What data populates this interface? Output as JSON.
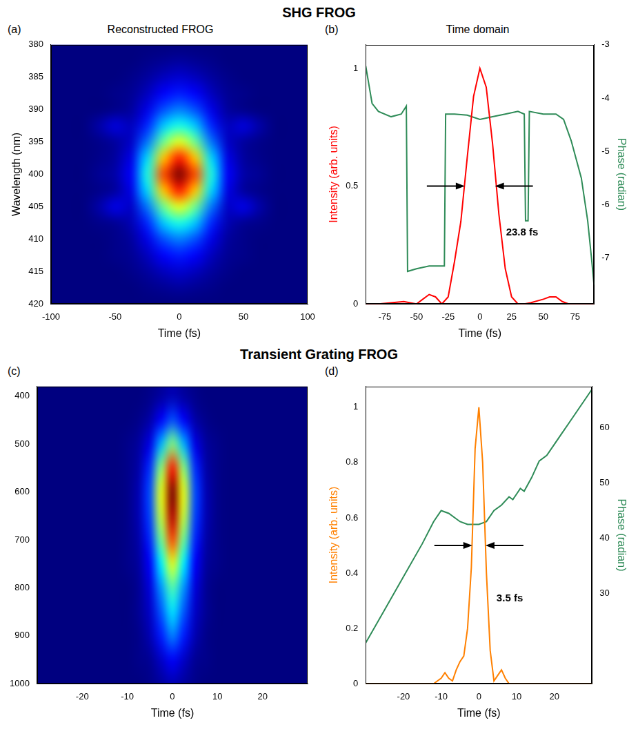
{
  "chart_data": [
    {
      "section_title": "SHG FROG",
      "panel": "(a)",
      "title": "Reconstructed FROG",
      "type": "heatmap",
      "color": "jet",
      "x_label": "Time (fs)",
      "y_label": "Wavelength (nm)",
      "grid": false,
      "x": [
        -100,
        -87.5,
        -75,
        -62.5,
        -50,
        -37.5,
        -25,
        -12.5,
        0,
        12.5,
        25,
        37.5,
        50,
        62.5,
        75,
        87.5,
        100
      ],
      "y": [
        380,
        382.5,
        385,
        387.5,
        390,
        392.5,
        395,
        397.5,
        400,
        402.5,
        405,
        407.5,
        410,
        412.5,
        415,
        417.5,
        420
      ],
      "z": [
        [
          0,
          0,
          0,
          0,
          0,
          0,
          0,
          0,
          0,
          0,
          0,
          0,
          0,
          0,
          0,
          0,
          0
        ],
        [
          0,
          0,
          0,
          0,
          0,
          0,
          0.01,
          0.02,
          0.03,
          0.02,
          0.01,
          0,
          0,
          0,
          0,
          0,
          0
        ],
        [
          0,
          0,
          0,
          0,
          0,
          0.01,
          0.03,
          0.06,
          0.08,
          0.06,
          0.03,
          0.01,
          0,
          0,
          0,
          0,
          0
        ],
        [
          0,
          0,
          0,
          0,
          0.01,
          0.02,
          0.06,
          0.12,
          0.15,
          0.12,
          0.06,
          0.02,
          0.01,
          0,
          0,
          0,
          0
        ],
        [
          0,
          0,
          0,
          0,
          0.01,
          0.03,
          0.1,
          0.2,
          0.25,
          0.2,
          0.1,
          0.03,
          0.01,
          0,
          0,
          0,
          0
        ],
        [
          0,
          0,
          0,
          0.04,
          0.09,
          0.06,
          0.16,
          0.32,
          0.4,
          0.32,
          0.16,
          0.06,
          0.09,
          0.04,
          0,
          0,
          0
        ],
        [
          0,
          0,
          0,
          0.01,
          0.03,
          0.07,
          0.24,
          0.48,
          0.6,
          0.48,
          0.24,
          0.07,
          0.03,
          0.01,
          0,
          0,
          0
        ],
        [
          0,
          0,
          0,
          0.01,
          0.03,
          0.1,
          0.34,
          0.68,
          0.85,
          0.68,
          0.34,
          0.1,
          0.03,
          0.01,
          0,
          0,
          0
        ],
        [
          0,
          0,
          0,
          0.02,
          0.04,
          0.12,
          0.4,
          0.8,
          1,
          0.8,
          0.4,
          0.12,
          0.04,
          0.02,
          0,
          0,
          0
        ],
        [
          0,
          0,
          0,
          0.01,
          0.03,
          0.1,
          0.34,
          0.68,
          0.85,
          0.68,
          0.34,
          0.1,
          0.03,
          0.01,
          0,
          0,
          0
        ],
        [
          0,
          0,
          0,
          0.04,
          0.1,
          0.07,
          0.24,
          0.48,
          0.6,
          0.48,
          0.24,
          0.07,
          0.1,
          0.04,
          0,
          0,
          0
        ],
        [
          0,
          0,
          0,
          0.01,
          0.02,
          0.05,
          0.16,
          0.32,
          0.4,
          0.32,
          0.16,
          0.05,
          0.02,
          0.01,
          0,
          0,
          0
        ],
        [
          0,
          0,
          0,
          0,
          0.01,
          0.03,
          0.1,
          0.2,
          0.25,
          0.2,
          0.1,
          0.03,
          0.01,
          0,
          0,
          0,
          0
        ],
        [
          0,
          0,
          0,
          0,
          0.01,
          0.02,
          0.06,
          0.12,
          0.15,
          0.12,
          0.06,
          0.02,
          0.01,
          0,
          0,
          0,
          0
        ],
        [
          0,
          0,
          0,
          0,
          0,
          0.01,
          0.03,
          0.06,
          0.08,
          0.06,
          0.03,
          0.01,
          0,
          0,
          0,
          0,
          0
        ],
        [
          0,
          0,
          0,
          0,
          0,
          0,
          0.01,
          0.02,
          0.03,
          0.02,
          0.01,
          0,
          0,
          0,
          0,
          0,
          0
        ],
        [
          0,
          0,
          0,
          0,
          0,
          0,
          0,
          0,
          0,
          0,
          0,
          0,
          0,
          0,
          0,
          0,
          0
        ]
      ],
      "zlim": [
        0,
        1
      ],
      "xlim": [
        -100,
        100
      ],
      "xticks": [
        -100,
        -50,
        0,
        50,
        100
      ],
      "ylim": [
        420,
        380
      ],
      "yticks": [
        380,
        385,
        390,
        395,
        400,
        405,
        410,
        415,
        420
      ]
    },
    {
      "panel": "(b)",
      "title": "Time domain",
      "type": "line",
      "grid": false,
      "x_label": "Time (fs)",
      "y_label": "Intensity (arb. units)",
      "y2_label": "Phase (radian)",
      "xlim": [
        -90,
        90
      ],
      "xticks": [
        -75,
        -50,
        -25,
        0,
        25,
        50,
        75
      ],
      "ylim": [
        0,
        1.1
      ],
      "yticks": [
        0,
        0.5,
        1
      ],
      "y2lim": [
        -7.86,
        -3
      ],
      "y2ticks": [
        -7,
        -6,
        -5,
        -4,
        -3
      ],
      "series": [
        {
          "color": "#ff0000",
          "x": [
            -90,
            -80,
            -70,
            -60,
            -50,
            -45,
            -40,
            -35,
            -30,
            -25,
            -20,
            -15,
            -10,
            -5,
            0,
            5,
            10,
            15,
            20,
            25,
            30,
            35,
            40,
            50,
            55,
            60,
            65,
            70,
            80,
            90
          ],
          "values": [
            0,
            0,
            0.005,
            0.01,
            0,
            0.02,
            0.04,
            0.03,
            0,
            0.03,
            0.18,
            0.35,
            0.62,
            0.88,
            1,
            0.92,
            0.68,
            0.38,
            0.15,
            0.03,
            0,
            0,
            0.005,
            0.02,
            0.03,
            0.03,
            0.01,
            0,
            0,
            0
          ]
        },
        {
          "color": "#2e8b57",
          "axis": "y2",
          "x": [
            -90,
            -85,
            -80,
            -70,
            -62,
            -58,
            -57,
            -50,
            -40,
            -28,
            -27,
            -20,
            -10,
            0,
            10,
            20,
            30,
            35,
            36,
            38,
            39,
            50,
            60,
            66,
            72,
            80,
            85,
            88,
            90
          ],
          "values": [
            -3.4,
            -4.1,
            -4.25,
            -4.35,
            -4.3,
            -4.15,
            -7.25,
            -7.2,
            -7.15,
            -7.15,
            -4.3,
            -4.3,
            -4.32,
            -4.4,
            -4.35,
            -4.3,
            -4.25,
            -4.3,
            -6.3,
            -6.3,
            -4.25,
            -4.3,
            -4.3,
            -4.4,
            -4.8,
            -5.5,
            -6.3,
            -7.0,
            -7.5
          ]
        }
      ],
      "annotations": [
        {
          "text": "23.8 fs",
          "x": [
            -11.9,
            11.9
          ],
          "y": 0.5
        }
      ]
    },
    {
      "section_title": "Transient Grating FROG",
      "panel": "(c)",
      "type": "heatmap",
      "color": "jet",
      "x_label": "Time (fs)",
      "grid": false,
      "x": [
        -30,
        -27.5,
        -25,
        -22.5,
        -20,
        -17.5,
        -15,
        -12.5,
        -10,
        -7.5,
        -5,
        -2.5,
        0,
        2.5,
        5,
        7.5,
        10,
        12.5,
        15,
        17.5,
        20,
        22.5,
        25,
        27.5,
        30
      ],
      "y": [
        400,
        450,
        500,
        550,
        600,
        650,
        700,
        750,
        800,
        850,
        900,
        950,
        1000
      ],
      "z": [
        [
          0,
          0,
          0,
          0,
          0,
          0,
          0,
          0,
          0,
          0,
          0.01,
          0.03,
          0.05,
          0.03,
          0.01,
          0,
          0,
          0,
          0,
          0,
          0,
          0,
          0,
          0,
          0
        ],
        [
          0,
          0,
          0,
          0,
          0,
          0,
          0,
          0,
          0,
          0.01,
          0.04,
          0.12,
          0.2,
          0.12,
          0.04,
          0.01,
          0,
          0,
          0,
          0,
          0,
          0,
          0,
          0,
          0
        ],
        [
          0,
          0,
          0,
          0,
          0,
          0,
          0,
          0,
          0.01,
          0.03,
          0.1,
          0.3,
          0.5,
          0.3,
          0.1,
          0.03,
          0.01,
          0,
          0,
          0,
          0,
          0,
          0,
          0,
          0
        ],
        [
          0,
          0,
          0,
          0,
          0,
          0,
          0,
          0,
          0.01,
          0.04,
          0.17,
          0.51,
          0.85,
          0.51,
          0.17,
          0.04,
          0.01,
          0,
          0,
          0,
          0,
          0,
          0,
          0,
          0
        ],
        [
          0,
          0,
          0,
          0,
          0,
          0,
          0,
          0,
          0.01,
          0.05,
          0.2,
          0.6,
          1,
          0.6,
          0.2,
          0.05,
          0.01,
          0,
          0,
          0,
          0,
          0,
          0,
          0,
          0
        ],
        [
          0,
          0,
          0,
          0,
          0,
          0,
          0,
          0,
          0.01,
          0.05,
          0.19,
          0.57,
          0.95,
          0.57,
          0.19,
          0.05,
          0.01,
          0,
          0,
          0,
          0,
          0,
          0,
          0,
          0
        ],
        [
          0,
          0,
          0,
          0,
          0,
          0,
          0,
          0,
          0.01,
          0.04,
          0.16,
          0.48,
          0.8,
          0.48,
          0.16,
          0.04,
          0.01,
          0,
          0,
          0,
          0,
          0,
          0,
          0,
          0
        ],
        [
          0,
          0,
          0,
          0,
          0,
          0,
          0,
          0,
          0.01,
          0.03,
          0.12,
          0.36,
          0.6,
          0.36,
          0.12,
          0.03,
          0.01,
          0,
          0,
          0,
          0,
          0,
          0,
          0,
          0
        ],
        [
          0,
          0,
          0,
          0,
          0,
          0,
          0,
          0,
          0,
          0.02,
          0.09,
          0.27,
          0.45,
          0.27,
          0.09,
          0.02,
          0,
          0,
          0,
          0,
          0,
          0,
          0,
          0,
          0
        ],
        [
          0,
          0,
          0,
          0,
          0,
          0,
          0,
          0,
          0,
          0.02,
          0.07,
          0.21,
          0.35,
          0.21,
          0.07,
          0.02,
          0,
          0,
          0,
          0,
          0,
          0,
          0,
          0,
          0
        ],
        [
          0,
          0,
          0,
          0,
          0,
          0,
          0,
          0,
          0,
          0.01,
          0.05,
          0.15,
          0.25,
          0.15,
          0.05,
          0.01,
          0,
          0,
          0,
          0,
          0,
          0,
          0,
          0,
          0
        ],
        [
          0,
          0,
          0,
          0,
          0,
          0,
          0,
          0,
          0,
          0.01,
          0.02,
          0.07,
          0.12,
          0.07,
          0.02,
          0.01,
          0,
          0,
          0,
          0,
          0,
          0,
          0,
          0,
          0
        ],
        [
          0,
          0,
          0,
          0,
          0,
          0,
          0,
          0,
          0,
          0,
          0.01,
          0.03,
          0.05,
          0.03,
          0.01,
          0,
          0,
          0,
          0,
          0,
          0,
          0,
          0,
          0,
          0
        ]
      ],
      "zlim": [
        0,
        1
      ],
      "xlim": [
        -30,
        30
      ],
      "xticks": [
        -20,
        -10,
        0,
        10,
        20
      ],
      "ylim": [
        1000,
        380
      ],
      "yticks": [
        400,
        500,
        600,
        700,
        800,
        900,
        1000
      ]
    },
    {
      "panel": "(d)",
      "type": "line",
      "grid": false,
      "x_label": "Time (fs)",
      "y_label": "Intensity (arb. units)",
      "y2_label": "Phase (radian)",
      "xlim": [
        -30,
        30
      ],
      "xticks": [
        -20,
        -10,
        0,
        10,
        20
      ],
      "ylim": [
        0,
        1.075
      ],
      "yticks": [
        0,
        0.2,
        0.4,
        0.6,
        0.8,
        1
      ],
      "y2lim": [
        13.6,
        67.5
      ],
      "y2ticks": [
        30,
        40,
        50,
        60
      ],
      "series": [
        {
          "color": "#ff8000",
          "x": [
            -30,
            -20,
            -12,
            -10,
            -9,
            -8,
            -7,
            -6,
            -5,
            -4,
            -3,
            -2,
            -1,
            0,
            1,
            2,
            3,
            4,
            5,
            6,
            7,
            8,
            10,
            20,
            30
          ],
          "values": [
            0,
            0,
            0,
            0.02,
            0.04,
            0.02,
            0.01,
            0.05,
            0.08,
            0.1,
            0.2,
            0.42,
            0.85,
            1,
            0.8,
            0.4,
            0.12,
            0.01,
            0.03,
            0.05,
            0.02,
            0,
            0,
            0,
            0
          ]
        },
        {
          "color": "#2e8b57",
          "axis": "y2",
          "x": [
            -30,
            -25,
            -20,
            -15,
            -12,
            -10,
            -8,
            -5,
            -3,
            0,
            2,
            4,
            6,
            8,
            9,
            10,
            11,
            12,
            14,
            16,
            18,
            20,
            22,
            24,
            26,
            28,
            30
          ],
          "values": [
            21,
            27,
            33,
            39,
            43,
            45,
            44.5,
            43,
            42.5,
            42.5,
            43,
            45,
            46,
            47.5,
            47,
            48,
            49,
            48.5,
            51,
            54,
            55,
            57,
            59,
            61,
            63,
            65,
            67
          ]
        }
      ],
      "annotations": [
        {
          "text": "3.5 fs",
          "x": [
            -1.75,
            1.75
          ],
          "y": 0.5
        }
      ]
    }
  ]
}
